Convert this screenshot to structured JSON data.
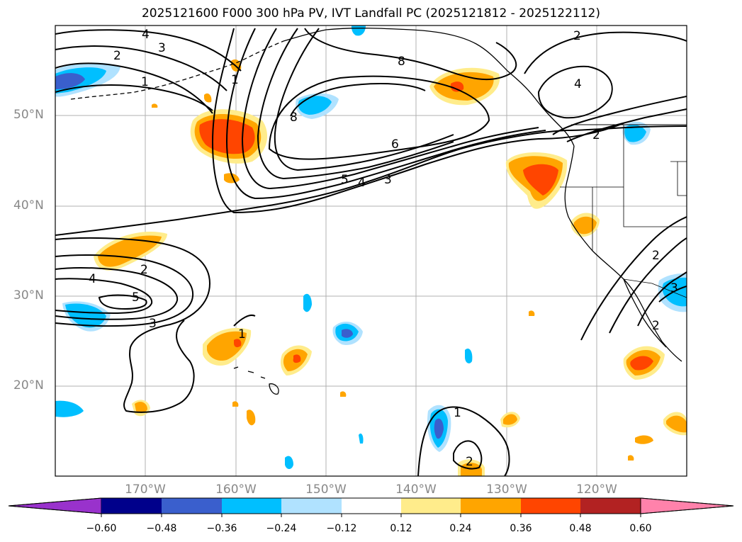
{
  "title": "2025121600 F000 300 hPa PV, IVT Landfall PC (2025121812 - 2025122112)",
  "map": {
    "lon_range": [
      -180,
      -110
    ],
    "lat_range": [
      10,
      60
    ],
    "lat_labels": [
      "50°N",
      "40°N",
      "30°N",
      "20°N"
    ],
    "lon_labels": [
      "170°W",
      "160°W",
      "150°W",
      "140°W",
      "130°W",
      "120°W"
    ],
    "contour_labels": [
      "4",
      "3",
      "2",
      "1",
      "1",
      "8",
      "8",
      "6",
      "5",
      "4",
      "3",
      "2",
      "4",
      "2",
      "2",
      "4",
      "2",
      "5",
      "3",
      "1",
      "1",
      "2",
      "2",
      "3"
    ]
  },
  "colorbar": {
    "ticks": [
      "−0.60",
      "−0.48",
      "−0.36",
      "−0.24",
      "−0.12",
      "0.12",
      "0.24",
      "0.36",
      "0.48",
      "0.60"
    ],
    "colors": [
      "#9932cc",
      "#00008b",
      "#3a5fcd",
      "#00bfff",
      "#b0e2ff",
      "#ffffff",
      "#ffec8b",
      "#ffa500",
      "#ff4500",
      "#b22222",
      "#ff82ab"
    ]
  },
  "colors": {
    "pos_light": "#ffec8b",
    "pos_mid": "#ffa500",
    "pos_strong": "#ff4500",
    "neg_light": "#b0e2ff",
    "neg_mid": "#00bfff",
    "neg_strong": "#3a5fcd"
  }
}
